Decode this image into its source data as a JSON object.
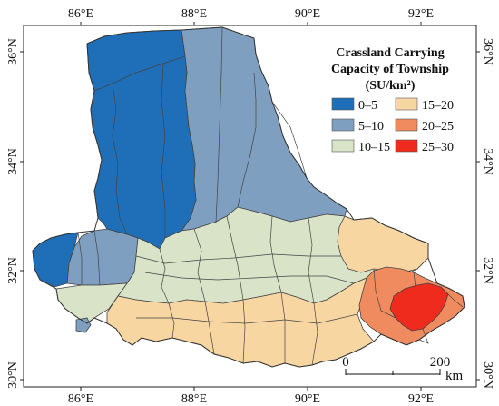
{
  "map": {
    "legend": {
      "title_lines": [
        "Crassland Carrying",
        "Capacity of Township",
        "(SU/km²)"
      ],
      "classes": [
        {
          "label": "0–5",
          "color": "#1f6fb8"
        },
        {
          "label": "15–20",
          "color": "#f8d6a2"
        },
        {
          "label": "5–10",
          "color": "#7f9fc0"
        },
        {
          "label": "20–25",
          "color": "#ef8b5e"
        },
        {
          "label": "10–15",
          "color": "#d8e3c8"
        },
        {
          "label": "25–30",
          "color": "#ef2b1e"
        }
      ]
    },
    "longitude_ticks": [
      "86°E",
      "88°E",
      "90°E",
      "92°E"
    ],
    "latitude_ticks": [
      "36°N",
      "34°N",
      "32°N",
      "30°N"
    ],
    "scale_bar": {
      "start": "0",
      "end": "200",
      "unit": "km"
    }
  }
}
